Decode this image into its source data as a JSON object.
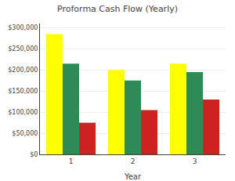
{
  "chart_data": {
    "type": "bar",
    "title": "Proforma Cash Flow (Yearly)",
    "xlabel": "Year",
    "categories": [
      "1",
      "2",
      "3"
    ],
    "series": [
      {
        "color": "#FFFF00",
        "values": [
          285000,
          200000,
          215000
        ]
      },
      {
        "color": "#2E8B57",
        "values": [
          215000,
          175000,
          195000
        ]
      },
      {
        "color": "#CC2222",
        "values": [
          75000,
          105000,
          130000
        ]
      }
    ],
    "ylim": [
      0,
      310000
    ],
    "yticks": [
      {
        "value": 0,
        "label": "$0"
      },
      {
        "value": 50000,
        "label": "$50,000"
      },
      {
        "value": 100000,
        "label": "$100,000"
      },
      {
        "value": 150000,
        "label": "$150,000"
      },
      {
        "value": 200000,
        "label": "$200,000"
      },
      {
        "value": 250000,
        "label": "$250,000"
      },
      {
        "value": 300000,
        "label": "$300,000"
      }
    ],
    "grid": true
  }
}
